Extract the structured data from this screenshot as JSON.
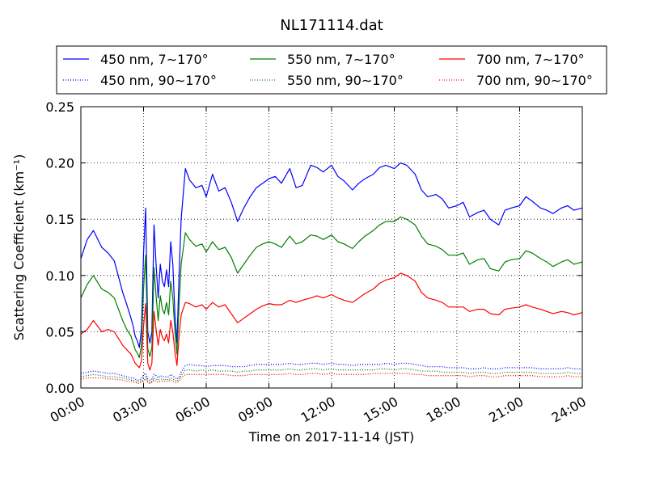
{
  "chart_data": {
    "type": "line",
    "title": "NL171114.dat",
    "xlabel": "Time on 2017-11-14 (JST)",
    "ylabel": "Scattering Coefficient (km⁻¹)",
    "xlim": [
      "00:00",
      "24:00"
    ],
    "ylim": [
      0.0,
      0.25
    ],
    "x_ticks": [
      "00:00",
      "03:00",
      "06:00",
      "09:00",
      "12:00",
      "15:00",
      "18:00",
      "21:00",
      "24:00"
    ],
    "y_ticks": [
      "0.00",
      "0.05",
      "0.10",
      "0.15",
      "0.20",
      "0.25"
    ],
    "grid": true,
    "legend_position": "top",
    "x_hours": [
      0,
      0.3,
      0.6,
      1.0,
      1.3,
      1.6,
      2.0,
      2.2,
      2.4,
      2.5,
      2.6,
      2.7,
      2.8,
      2.9,
      3.0,
      3.1,
      3.2,
      3.3,
      3.4,
      3.5,
      3.6,
      3.7,
      3.8,
      3.9,
      4.0,
      4.1,
      4.2,
      4.3,
      4.4,
      4.5,
      4.6,
      4.7,
      4.8,
      5.0,
      5.2,
      5.5,
      5.8,
      6.0,
      6.3,
      6.6,
      6.9,
      7.2,
      7.5,
      7.8,
      8.1,
      8.4,
      8.7,
      9.0,
      9.3,
      9.6,
      10.0,
      10.3,
      10.6,
      11.0,
      11.3,
      11.6,
      12.0,
      12.3,
      12.6,
      13.0,
      13.3,
      13.6,
      14.0,
      14.3,
      14.6,
      15.0,
      15.3,
      15.6,
      16.0,
      16.3,
      16.6,
      17.0,
      17.3,
      17.6,
      18.0,
      18.3,
      18.6,
      19.0,
      19.3,
      19.6,
      20.0,
      20.3,
      20.6,
      21.0,
      21.3,
      21.6,
      22.0,
      22.3,
      22.6,
      23.0,
      23.3,
      23.6,
      24.0
    ],
    "series": [
      {
        "name": "450 nm, 7∼170°",
        "color": "#0000ff",
        "style": "solid",
        "values": [
          0.115,
          0.132,
          0.14,
          0.125,
          0.12,
          0.113,
          0.085,
          0.074,
          0.062,
          0.055,
          0.046,
          0.042,
          0.036,
          0.052,
          0.12,
          0.16,
          0.05,
          0.04,
          0.05,
          0.145,
          0.11,
          0.08,
          0.11,
          0.095,
          0.09,
          0.105,
          0.09,
          0.13,
          0.11,
          0.065,
          0.04,
          0.1,
          0.15,
          0.195,
          0.185,
          0.178,
          0.18,
          0.17,
          0.19,
          0.175,
          0.178,
          0.165,
          0.148,
          0.16,
          0.17,
          0.178,
          0.182,
          0.186,
          0.188,
          0.182,
          0.195,
          0.178,
          0.18,
          0.198,
          0.196,
          0.192,
          0.198,
          0.188,
          0.184,
          0.176,
          0.182,
          0.186,
          0.19,
          0.196,
          0.198,
          0.195,
          0.2,
          0.198,
          0.19,
          0.176,
          0.17,
          0.172,
          0.168,
          0.16,
          0.162,
          0.165,
          0.152,
          0.156,
          0.158,
          0.15,
          0.145,
          0.158,
          0.16,
          0.162,
          0.17,
          0.166,
          0.16,
          0.158,
          0.155,
          0.16,
          0.162,
          0.158,
          0.16
        ]
      },
      {
        "name": "550 nm, 7∼170°",
        "color": "#008000",
        "style": "solid",
        "values": [
          0.08,
          0.092,
          0.1,
          0.088,
          0.085,
          0.08,
          0.06,
          0.052,
          0.046,
          0.04,
          0.034,
          0.031,
          0.027,
          0.038,
          0.088,
          0.118,
          0.035,
          0.028,
          0.036,
          0.107,
          0.082,
          0.06,
          0.082,
          0.07,
          0.066,
          0.076,
          0.065,
          0.095,
          0.08,
          0.05,
          0.03,
          0.074,
          0.11,
          0.138,
          0.132,
          0.126,
          0.128,
          0.121,
          0.13,
          0.123,
          0.125,
          0.116,
          0.102,
          0.11,
          0.118,
          0.125,
          0.128,
          0.13,
          0.128,
          0.125,
          0.135,
          0.128,
          0.13,
          0.136,
          0.135,
          0.132,
          0.136,
          0.13,
          0.128,
          0.124,
          0.13,
          0.135,
          0.14,
          0.145,
          0.148,
          0.148,
          0.152,
          0.15,
          0.145,
          0.135,
          0.128,
          0.126,
          0.123,
          0.118,
          0.118,
          0.12,
          0.11,
          0.114,
          0.115,
          0.106,
          0.104,
          0.112,
          0.114,
          0.115,
          0.122,
          0.12,
          0.115,
          0.112,
          0.108,
          0.112,
          0.114,
          0.11,
          0.112
        ]
      },
      {
        "name": "700 nm, 7∼170°",
        "color": "#ff0000",
        "style": "solid",
        "values": [
          0.048,
          0.052,
          0.06,
          0.05,
          0.052,
          0.05,
          0.038,
          0.034,
          0.03,
          0.026,
          0.022,
          0.02,
          0.018,
          0.024,
          0.055,
          0.075,
          0.022,
          0.016,
          0.022,
          0.068,
          0.052,
          0.038,
          0.052,
          0.045,
          0.042,
          0.048,
          0.04,
          0.06,
          0.05,
          0.032,
          0.02,
          0.046,
          0.065,
          0.076,
          0.075,
          0.072,
          0.074,
          0.07,
          0.076,
          0.072,
          0.074,
          0.066,
          0.058,
          0.062,
          0.066,
          0.07,
          0.073,
          0.075,
          0.074,
          0.074,
          0.078,
          0.076,
          0.078,
          0.08,
          0.082,
          0.08,
          0.083,
          0.08,
          0.078,
          0.076,
          0.08,
          0.084,
          0.088,
          0.093,
          0.096,
          0.098,
          0.102,
          0.1,
          0.095,
          0.085,
          0.08,
          0.078,
          0.076,
          0.072,
          0.072,
          0.072,
          0.068,
          0.07,
          0.07,
          0.066,
          0.065,
          0.07,
          0.071,
          0.072,
          0.074,
          0.072,
          0.07,
          0.068,
          0.066,
          0.068,
          0.067,
          0.065,
          0.067
        ]
      },
      {
        "name": "450 nm, 90∼170°",
        "color": "#0000ff",
        "style": "dotted",
        "values": [
          0.013,
          0.014,
          0.015,
          0.014,
          0.013,
          0.013,
          0.011,
          0.01,
          0.009,
          0.009,
          0.008,
          0.007,
          0.007,
          0.008,
          0.012,
          0.013,
          0.008,
          0.007,
          0.008,
          0.012,
          0.011,
          0.009,
          0.011,
          0.01,
          0.01,
          0.01,
          0.01,
          0.012,
          0.011,
          0.009,
          0.008,
          0.01,
          0.014,
          0.02,
          0.021,
          0.02,
          0.02,
          0.019,
          0.02,
          0.02,
          0.02,
          0.019,
          0.019,
          0.019,
          0.02,
          0.021,
          0.021,
          0.021,
          0.021,
          0.021,
          0.022,
          0.021,
          0.021,
          0.022,
          0.022,
          0.021,
          0.022,
          0.021,
          0.021,
          0.02,
          0.021,
          0.021,
          0.021,
          0.021,
          0.022,
          0.021,
          0.022,
          0.022,
          0.021,
          0.02,
          0.019,
          0.019,
          0.019,
          0.018,
          0.018,
          0.018,
          0.017,
          0.017,
          0.018,
          0.017,
          0.017,
          0.018,
          0.018,
          0.018,
          0.018,
          0.018,
          0.017,
          0.017,
          0.017,
          0.017,
          0.018,
          0.017,
          0.017
        ]
      },
      {
        "name": "550 nm, 90∼170°",
        "color": "#008000",
        "style": "dotted",
        "values": [
          0.01,
          0.011,
          0.012,
          0.011,
          0.01,
          0.01,
          0.009,
          0.008,
          0.007,
          0.007,
          0.006,
          0.006,
          0.005,
          0.006,
          0.009,
          0.01,
          0.006,
          0.005,
          0.006,
          0.009,
          0.008,
          0.007,
          0.008,
          0.008,
          0.007,
          0.008,
          0.007,
          0.009,
          0.008,
          0.007,
          0.006,
          0.008,
          0.011,
          0.016,
          0.016,
          0.015,
          0.016,
          0.015,
          0.016,
          0.015,
          0.015,
          0.015,
          0.014,
          0.015,
          0.015,
          0.016,
          0.016,
          0.016,
          0.016,
          0.016,
          0.017,
          0.016,
          0.016,
          0.017,
          0.017,
          0.016,
          0.017,
          0.016,
          0.016,
          0.016,
          0.016,
          0.016,
          0.016,
          0.017,
          0.017,
          0.016,
          0.017,
          0.017,
          0.016,
          0.015,
          0.015,
          0.015,
          0.014,
          0.014,
          0.014,
          0.014,
          0.013,
          0.014,
          0.014,
          0.013,
          0.013,
          0.014,
          0.014,
          0.014,
          0.014,
          0.014,
          0.013,
          0.013,
          0.013,
          0.013,
          0.014,
          0.013,
          0.013
        ]
      },
      {
        "name": "700 nm, 90∼170°",
        "color": "#ff0000",
        "style": "dotted",
        "values": [
          0.008,
          0.009,
          0.009,
          0.009,
          0.008,
          0.008,
          0.007,
          0.006,
          0.006,
          0.005,
          0.005,
          0.004,
          0.004,
          0.005,
          0.007,
          0.008,
          0.005,
          0.004,
          0.005,
          0.007,
          0.006,
          0.005,
          0.006,
          0.006,
          0.006,
          0.006,
          0.006,
          0.007,
          0.006,
          0.005,
          0.005,
          0.006,
          0.009,
          0.012,
          0.012,
          0.012,
          0.012,
          0.012,
          0.012,
          0.012,
          0.012,
          0.011,
          0.011,
          0.011,
          0.012,
          0.012,
          0.012,
          0.012,
          0.012,
          0.012,
          0.013,
          0.012,
          0.012,
          0.013,
          0.013,
          0.012,
          0.013,
          0.012,
          0.012,
          0.012,
          0.012,
          0.012,
          0.013,
          0.013,
          0.013,
          0.013,
          0.013,
          0.013,
          0.012,
          0.012,
          0.011,
          0.011,
          0.011,
          0.011,
          0.011,
          0.011,
          0.01,
          0.011,
          0.011,
          0.01,
          0.01,
          0.011,
          0.011,
          0.011,
          0.011,
          0.011,
          0.01,
          0.01,
          0.01,
          0.01,
          0.011,
          0.01,
          0.01
        ]
      }
    ]
  }
}
